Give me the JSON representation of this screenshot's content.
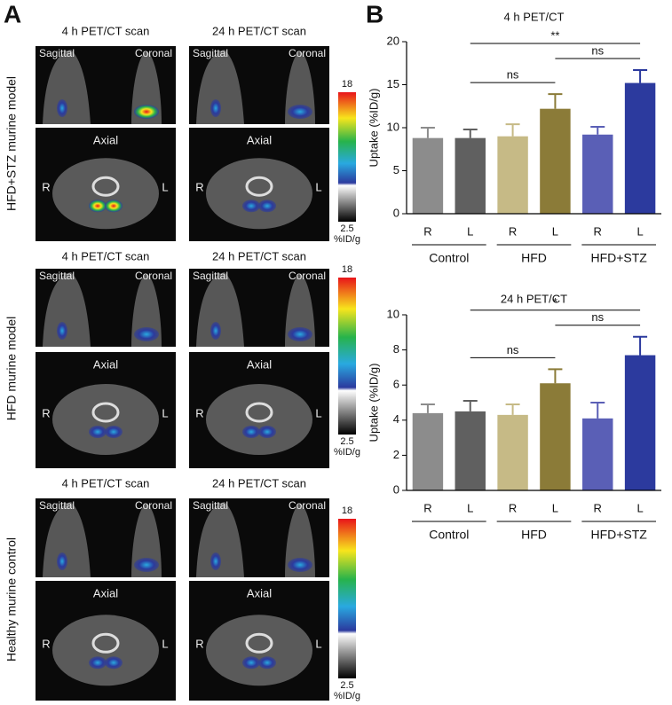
{
  "panel_a": {
    "label": "A",
    "rows": [
      {
        "label": "HFD+STZ murine model",
        "scans": [
          {
            "title": "4 h PET/CT scan",
            "sagittal": "Sagittal",
            "coronal": "Coronal",
            "axial": "Axial",
            "right": "R",
            "left": "L"
          },
          {
            "title": "24 h PET/CT scan",
            "sagittal": "Sagittal",
            "coronal": "Coronal",
            "axial": "Axial",
            "right": "R",
            "left": "L"
          }
        ],
        "scale": {
          "max": 18,
          "min": 2.5,
          "unit": "%ID/g"
        }
      },
      {
        "label": "HFD murine model",
        "scans": [
          {
            "title": "4 h PET/CT scan",
            "sagittal": "Sagittal",
            "coronal": "Coronal",
            "axial": "Axial",
            "right": "R",
            "left": "L"
          },
          {
            "title": "24 h PET/CT scan",
            "sagittal": "Sagittal",
            "coronal": "Coronal",
            "axial": "Axial",
            "right": "R",
            "left": "L"
          }
        ],
        "scale": {
          "max": 18,
          "min": 2.5,
          "unit": "%ID/g"
        }
      },
      {
        "label": "Healthy murine control",
        "scans": [
          {
            "title": "4 h PET/CT scan",
            "sagittal": "Sagittal",
            "coronal": "Coronal",
            "axial": "Axial",
            "right": "R",
            "left": "L"
          },
          {
            "title": "24 h PET/CT scan",
            "sagittal": "Sagittal",
            "coronal": "Coronal",
            "axial": "Axial",
            "right": "R",
            "left": "L"
          }
        ],
        "scale": {
          "max": 18,
          "min": 2.5,
          "unit": "%ID/g"
        }
      }
    ]
  },
  "panel_b": {
    "label": "B"
  },
  "chart_data": [
    {
      "type": "bar",
      "title": "4 h PET/CT",
      "y_label": "Uptake (%ID/g)",
      "categories": [
        "R",
        "L",
        "R",
        "L",
        "R",
        "L"
      ],
      "groups": [
        "Control",
        "HFD",
        "HFD+STZ"
      ],
      "values": [
        8.8,
        8.8,
        9.0,
        12.2,
        9.2,
        15.2
      ],
      "errors": [
        1.2,
        1.0,
        1.4,
        1.7,
        0.9,
        1.5
      ],
      "colors": [
        "#8c8c8c",
        "#606060",
        "#c6ba86",
        "#8b7b38",
        "#5a5fb6",
        "#2c3a9e"
      ],
      "ylim": [
        0,
        20
      ],
      "yticks": [
        0,
        5,
        10,
        15,
        20
      ],
      "annotations": [
        {
          "label": "ns",
          "from": 1,
          "to": 3
        },
        {
          "label": "ns",
          "from": 3,
          "to": 5
        },
        {
          "label": "**",
          "from": 1,
          "to": 5
        }
      ]
    },
    {
      "type": "bar",
      "title": "24 h PET/CT",
      "y_label": "Uptake (%ID/g)",
      "categories": [
        "R",
        "L",
        "R",
        "L",
        "R",
        "L"
      ],
      "groups": [
        "Control",
        "HFD",
        "HFD+STZ"
      ],
      "values": [
        4.4,
        4.5,
        4.3,
        6.1,
        4.1,
        7.7
      ],
      "errors": [
        0.5,
        0.6,
        0.6,
        0.8,
        0.9,
        1.05
      ],
      "colors": [
        "#8c8c8c",
        "#606060",
        "#c6ba86",
        "#8b7b38",
        "#5a5fb6",
        "#2c3a9e"
      ],
      "ylim": [
        0,
        10
      ],
      "yticks": [
        0,
        2,
        4,
        6,
        8,
        10
      ],
      "annotations": [
        {
          "label": "ns",
          "from": 1,
          "to": 3
        },
        {
          "label": "ns",
          "from": 3,
          "to": 5
        },
        {
          "label": "*",
          "from": 1,
          "to": 5
        }
      ]
    }
  ]
}
